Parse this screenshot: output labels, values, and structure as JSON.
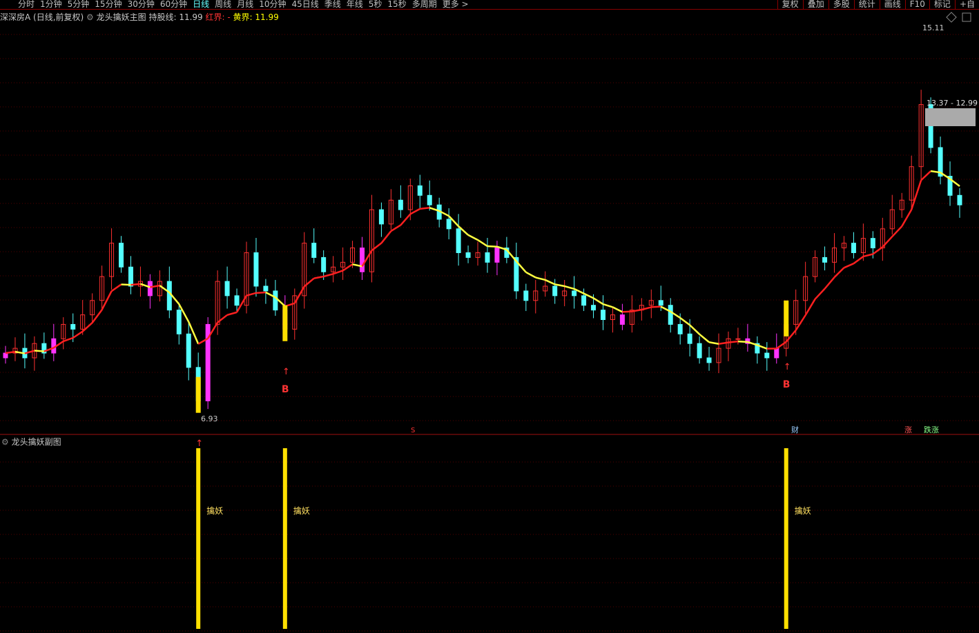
{
  "toolbar": {
    "periods": [
      "分时",
      "1分钟",
      "5分钟",
      "15分钟",
      "30分钟",
      "60分钟",
      "日线",
      "周线",
      "月线",
      "10分钟",
      "45日线",
      "季线",
      "年线",
      "5秒",
      "15秒",
      "多周期",
      "更多 >"
    ],
    "active": "日线",
    "right": [
      "复权",
      "叠加",
      "多股",
      "统计",
      "画线",
      "F10",
      "标记",
      "+自"
    ]
  },
  "header": {
    "stock": "深深房A (日线,前复权)",
    "indicator": "龙头擒妖主图",
    "hold_label": "持股线: 11.99",
    "red_label": "红界: -",
    "yellow_label": "黄界: 11.99"
  },
  "sub_panel": {
    "title": "龙头擒妖副图",
    "signal_label": "擒妖"
  },
  "annotations": {
    "high": "15.11",
    "low": "6.93",
    "range_box": "13.37 - 12.99",
    "buy": "B",
    "sell": "S",
    "fin": "财",
    "zhang": "涨",
    "die": "跌涨"
  },
  "colors": {
    "up": "#ff3030",
    "down": "#54ffff",
    "signal": "#ff33ff",
    "hold_rise": "#ff2020",
    "hold_fall": "#ffff40",
    "bar": "#ffe000"
  },
  "chart_data": {
    "type": "candlestick",
    "ylim": [
      6.93,
      15.11
    ],
    "closes": [
      8.3,
      8.4,
      8.2,
      8.5,
      8.3,
      8.6,
      8.9,
      8.8,
      9.1,
      9.4,
      9.9,
      10.6,
      10.1,
      9.7,
      9.8,
      9.5,
      9.8,
      9.2,
      8.7,
      8.0,
      7.3,
      8.9,
      9.8,
      9.5,
      9.3,
      10.4,
      9.7,
      9.6,
      9.2,
      8.8,
      9.5,
      10.6,
      10.3,
      10.0,
      10.1,
      10.2,
      10.5,
      10.0,
      11.3,
      11.0,
      11.5,
      11.3,
      11.8,
      11.6,
      11.4,
      11.1,
      10.9,
      10.4,
      10.3,
      10.4,
      10.2,
      10.5,
      10.3,
      9.6,
      9.4,
      9.6,
      9.7,
      9.5,
      9.6,
      9.5,
      9.3,
      9.2,
      9.0,
      9.1,
      8.9,
      9.2,
      9.3,
      9.4,
      9.3,
      8.9,
      8.7,
      8.5,
      8.2,
      8.1,
      8.4,
      8.6,
      8.6,
      8.5,
      8.3,
      8.2,
      8.4,
      8.9,
      9.4,
      9.9,
      10.3,
      10.2,
      10.5,
      10.6,
      10.4,
      10.7,
      10.5,
      10.9,
      11.3,
      11.5,
      12.2,
      13.5,
      12.6,
      12.0,
      11.6,
      11.4
    ],
    "signal_indices": [
      0,
      5,
      15,
      21,
      29,
      37,
      51,
      64,
      77,
      80
    ],
    "buy_indices": [
      29,
      81
    ],
    "capture_indices": [
      20,
      29,
      81
    ]
  }
}
